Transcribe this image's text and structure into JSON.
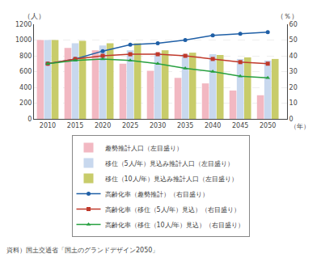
{
  "chart_data": {
    "type": "bar",
    "x": [
      2010,
      2015,
      2020,
      2025,
      2030,
      2035,
      2040,
      2045,
      2050
    ],
    "xlim": [
      2007.5,
      2053.5
    ],
    "xticks": [
      2010,
      2015,
      2020,
      2025,
      2030,
      2035,
      2040,
      2045,
      2050
    ],
    "xlabel": "（年）",
    "ylabel": "（人）",
    "y2label": "（％）",
    "ylim": [
      0,
      1200
    ],
    "yticks": [
      0,
      200,
      400,
      600,
      800,
      1000,
      1200
    ],
    "y2lim": [
      0,
      60
    ],
    "y2ticks": [
      0,
      10,
      20,
      30,
      40,
      50,
      60
    ],
    "grid": true,
    "legend": "bottom",
    "source": "資料）国土交通省「国土のグランドデザイン2050」",
    "series": [
      {
        "name": "趣勢推計人口（左目盛り）",
        "type": "bar",
        "color": "#f2b8c2",
        "values": [
          1000,
          900,
          870,
          700,
          610,
          520,
          450,
          360,
          300
        ]
      },
      {
        "name": "移住（5人/年）見込み推計人口（左目盛り）",
        "type": "bar",
        "color": "#c8d8ee",
        "values": [
          1000,
          960,
          930,
          870,
          840,
          820,
          820,
          760,
          740
        ]
      },
      {
        "name": "移住（10人/年）見込み推計人口（左目盛り）",
        "type": "bar",
        "color": "#c8cc6a",
        "values": [
          1000,
          990,
          960,
          960,
          870,
          840,
          810,
          780,
          760
        ]
      },
      {
        "name": "高齢化率（趣勢推計）（右目盛り）",
        "type": "line",
        "axis": "y2",
        "color": "#1f5fa6",
        "marker": "circle",
        "values": [
          35,
          38,
          43,
          47,
          48,
          50,
          53,
          54,
          55
        ]
      },
      {
        "name": "高齢化率（移住（5人/年）見込）（右目盛り）",
        "type": "line",
        "axis": "y2",
        "color": "#c0392b",
        "marker": "square",
        "values": [
          35,
          38,
          40,
          41,
          41,
          40,
          38,
          36,
          35
        ]
      },
      {
        "name": "高齢化率（移住（10人/年）見込）（右目盛り）",
        "type": "line",
        "axis": "y2",
        "color": "#27a040",
        "marker": "triangle-up",
        "values": [
          35,
          37,
          38,
          37,
          35,
          32,
          30,
          27,
          26
        ]
      }
    ]
  }
}
